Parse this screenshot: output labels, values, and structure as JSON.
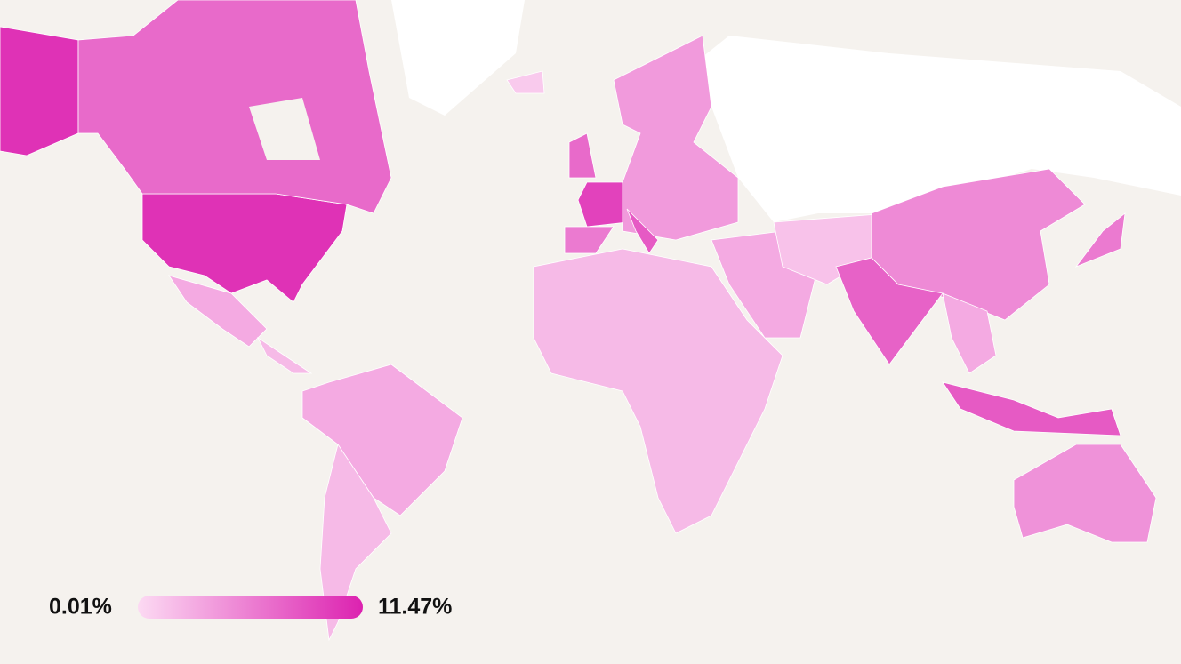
{
  "legend": {
    "min": {
      "value": 0.01,
      "label": "0.01%"
    },
    "max": {
      "value": 11.47,
      "label": "11.47%"
    },
    "colors": [
      "#fcdaf3",
      "#dc22b0"
    ]
  },
  "regions": {
    "values": [
      10.5,
      7,
      3,
      2,
      3,
      2,
      7,
      9.5,
      4,
      6,
      8,
      2,
      3,
      1.5,
      5,
      7.5,
      3,
      8,
      6,
      4.5,
      1
    ]
  }
}
